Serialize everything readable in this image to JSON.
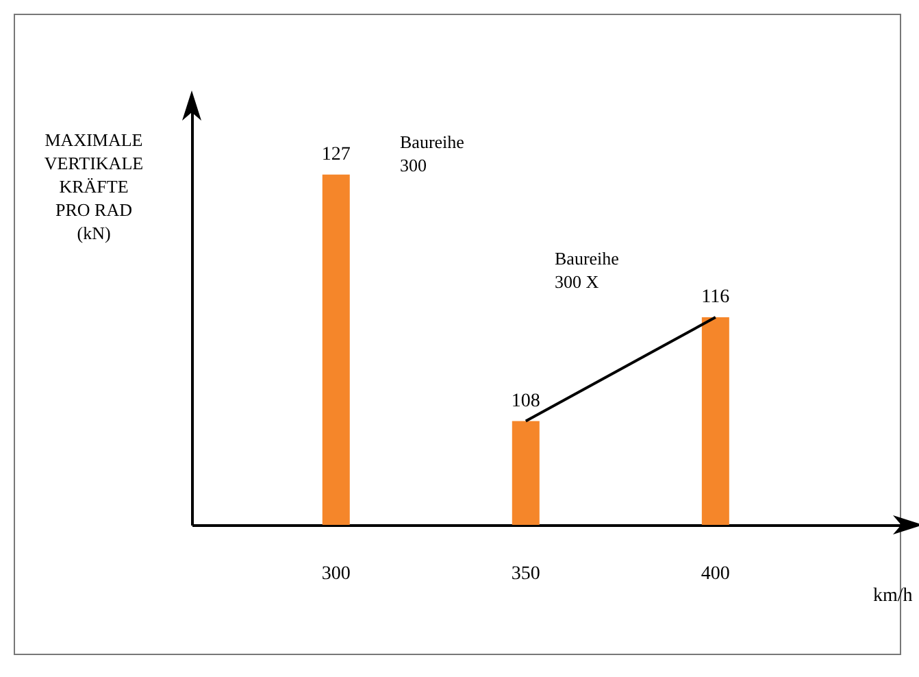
{
  "chart_data": {
    "type": "bar",
    "ylabel": "MAXIMALE\nVERTIKALE\nKRÄFTE\nPRO RAD\n(kN)",
    "xlabel": "km/h",
    "categories": [
      "300",
      "350",
      "400"
    ],
    "series": [
      {
        "color": "#f5862a",
        "values": [
          127,
          108,
          116
        ]
      },
      {
        "type": "line",
        "color": "#000000",
        "values": [
          null,
          108,
          116
        ],
        "value_labels": [
          null,
          null,
          null
        ]
      }
    ],
    "ylim": [
      100,
      132
    ],
    "data_labels": true,
    "tick_labels": "x",
    "grid": false,
    "marker": "none",
    "line_style": "solid",
    "annotations": [
      "Baureihe\n300",
      "Baureihe\n300 X"
    ]
  }
}
